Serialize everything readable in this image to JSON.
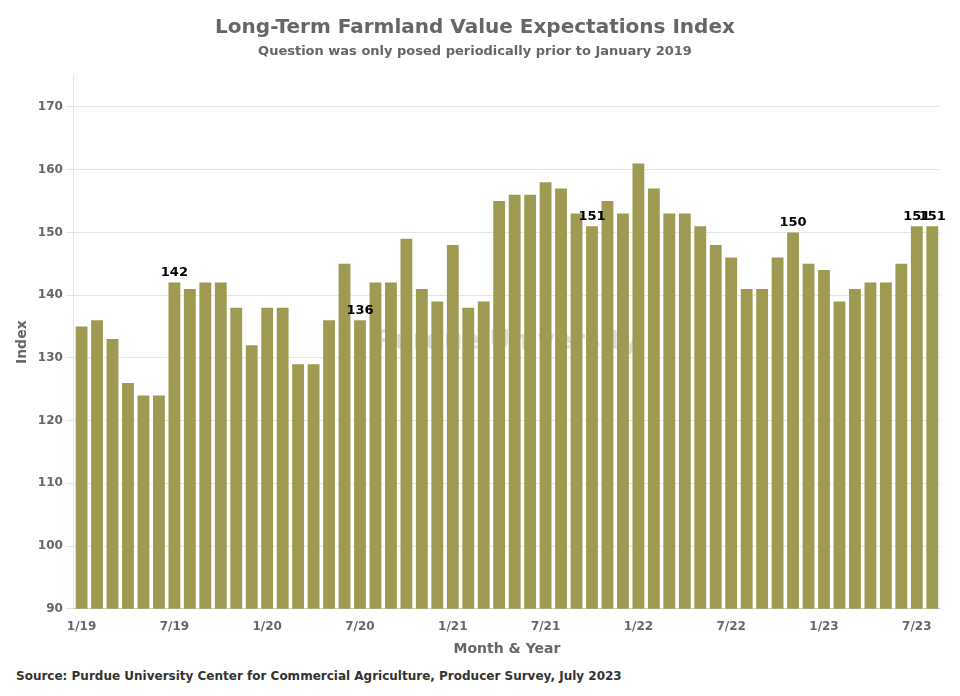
{
  "chart_data": {
    "type": "bar",
    "title": "Long-Term Farmland Value Expectations Index",
    "subtitle": "Question was only posed periodically prior to January 2019",
    "ylabel": "Index",
    "xlabel": "Month & Year",
    "source": "Source: Purdue University Center for Commercial Agriculture, Producer Survey, July 2023",
    "categories": [
      "1/19",
      null,
      null,
      null,
      null,
      null,
      "7/19",
      null,
      null,
      null,
      null,
      null,
      "1/20",
      null,
      null,
      null,
      null,
      null,
      "7/20",
      null,
      null,
      null,
      null,
      null,
      "1/21",
      null,
      null,
      null,
      null,
      null,
      "7/21",
      null,
      null,
      null,
      null,
      null,
      "1/22",
      null,
      null,
      null,
      null,
      null,
      "7/22",
      null,
      null,
      null,
      null,
      null,
      "1/23",
      null,
      null,
      null,
      null,
      null,
      "7/23",
      null
    ],
    "values": [
      135,
      136,
      133,
      126,
      124,
      124,
      142,
      141,
      142,
      142,
      138,
      132,
      138,
      138,
      129,
      129,
      136,
      145,
      136,
      142,
      142,
      149,
      141,
      139,
      148,
      138,
      139,
      155,
      156,
      156,
      158,
      157,
      153,
      151,
      155,
      153,
      161,
      157,
      153,
      153,
      151,
      148,
      146,
      141,
      141,
      146,
      150,
      145,
      144,
      139,
      141,
      142,
      142,
      145,
      151,
      151
    ],
    "color": "#9e9a52",
    "ylim": [
      90,
      175
    ],
    "yticks": [
      90,
      100,
      110,
      120,
      130,
      140,
      150,
      160,
      170
    ],
    "grid": "y",
    "annotations": [
      {
        "index": 6,
        "label": "142"
      },
      {
        "index": 18,
        "label": "136"
      },
      {
        "index": 33,
        "label": "151"
      },
      {
        "index": 46,
        "label": "150"
      },
      {
        "index": 54,
        "label": "151"
      },
      {
        "index": 55,
        "label": "151"
      },
      {
        "label": "Purdue University"
      }
    ]
  }
}
